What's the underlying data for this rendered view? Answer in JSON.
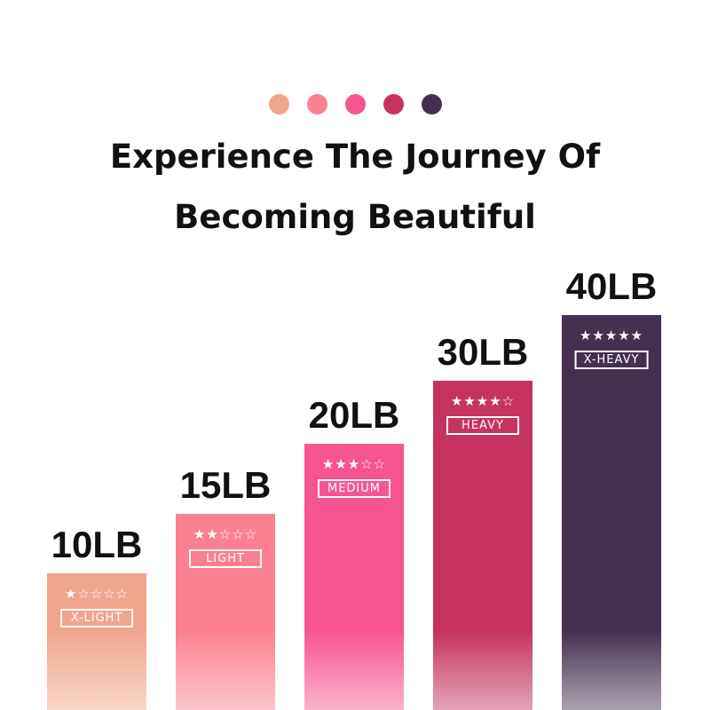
{
  "header": {
    "dot_colors": [
      "#efa68c",
      "#fb8090",
      "#f75590",
      "#c63360",
      "#453050"
    ],
    "title_line1": "Experience The Journey Of",
    "title_line2": "Becoming Beautiful"
  },
  "chart_data": {
    "type": "bar",
    "categories": [
      "10LB",
      "15LB",
      "20LB",
      "30LB",
      "40LB"
    ],
    "values": [
      10,
      15,
      20,
      30,
      40
    ],
    "unit": "LB",
    "levels": [
      "X-LIGHT",
      "LIGHT",
      "MEDIUM",
      "HEAVY",
      "X-HEAVY"
    ],
    "stars": [
      1,
      2,
      3,
      4,
      5
    ],
    "star_max": 5,
    "colors": [
      "#efa68c",
      "#fb8090",
      "#f75590",
      "#c63360",
      "#453050"
    ],
    "grid": false
  }
}
